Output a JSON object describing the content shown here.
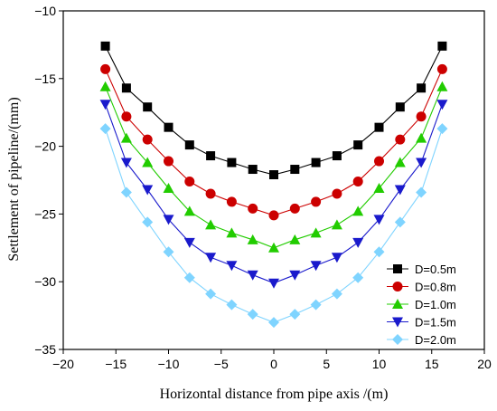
{
  "chart_data": {
    "type": "line",
    "title": "",
    "xlabel": "Horizontal distance from pipe axis /(m)",
    "ylabel": "Settlement of pipeline/(mm)",
    "xlim": [
      -20,
      20
    ],
    "ylim": [
      -35,
      -10
    ],
    "xticks": [
      -20,
      -15,
      -10,
      -5,
      0,
      5,
      10,
      15,
      20
    ],
    "yticks": [
      -10,
      -15,
      -20,
      -25,
      -30,
      -35
    ],
    "xtick_labels": [
      "−20",
      "−15",
      "−10",
      "−5",
      "0",
      "5",
      "10",
      "15",
      "20"
    ],
    "ytick_labels": [
      "−10",
      "−15",
      "−20",
      "−25",
      "−30",
      "−35"
    ],
    "grid": false,
    "legend_position": "lower-right",
    "x": [
      -16,
      -14,
      -12,
      -10,
      -8,
      -6,
      -4,
      -2,
      0,
      2,
      4,
      6,
      8,
      10,
      12,
      14,
      16
    ],
    "series": [
      {
        "name": "D=0.5m",
        "marker": "square",
        "color": "#000000",
        "values": [
          -12.6,
          -15.7,
          -17.1,
          -18.6,
          -19.9,
          -20.7,
          -21.2,
          -21.7,
          -22.1,
          -21.7,
          -21.2,
          -20.7,
          -19.9,
          -18.6,
          -17.1,
          -15.7,
          -12.6
        ]
      },
      {
        "name": "D=0.8m",
        "marker": "circle",
        "color": "#cc0000",
        "values": [
          -14.3,
          -17.8,
          -19.5,
          -21.1,
          -22.6,
          -23.5,
          -24.1,
          -24.6,
          -25.1,
          -24.6,
          -24.1,
          -23.5,
          -22.6,
          -21.1,
          -19.5,
          -17.8,
          -14.3
        ]
      },
      {
        "name": "D=1.0m",
        "marker": "triangle-up",
        "color": "#22cc00",
        "values": [
          -15.6,
          -19.4,
          -21.2,
          -23.1,
          -24.8,
          -25.8,
          -26.4,
          -26.9,
          -27.5,
          -26.9,
          -26.4,
          -25.8,
          -24.8,
          -23.1,
          -21.2,
          -19.4,
          -15.6
        ]
      },
      {
        "name": "D=1.5m",
        "marker": "triangle-down",
        "color": "#1a1acc",
        "values": [
          -16.9,
          -21.2,
          -23.2,
          -25.4,
          -27.1,
          -28.2,
          -28.8,
          -29.5,
          -30.1,
          -29.5,
          -28.8,
          -28.2,
          -27.1,
          -25.4,
          -23.2,
          -21.2,
          -16.9
        ]
      },
      {
        "name": "D=2.0m",
        "marker": "diamond",
        "color": "#7fd4ff",
        "values": [
          -18.7,
          -23.4,
          -25.6,
          -27.8,
          -29.7,
          -30.9,
          -31.7,
          -32.4,
          -33.0,
          -32.4,
          -31.7,
          -30.9,
          -29.7,
          -27.8,
          -25.6,
          -23.4,
          -18.7
        ]
      }
    ]
  }
}
